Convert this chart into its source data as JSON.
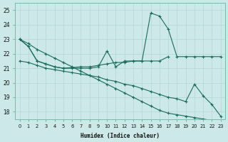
{
  "xlabel": "Humidex (Indice chaleur)",
  "xlim": [
    -0.5,
    23.5
  ],
  "ylim": [
    17.5,
    25.5
  ],
  "yticks": [
    18,
    19,
    20,
    21,
    22,
    23,
    24,
    25
  ],
  "xticks": [
    0,
    1,
    2,
    3,
    4,
    5,
    6,
    7,
    8,
    9,
    10,
    11,
    12,
    13,
    14,
    15,
    16,
    17,
    18,
    19,
    20,
    21,
    22,
    23
  ],
  "bg_color": "#cce8e8",
  "grid_color": "#aacccc",
  "line_color": "#1a6b5a",
  "line1_x": [
    0,
    1,
    2,
    3,
    4,
    5,
    6,
    7,
    8,
    9,
    10,
    11,
    12,
    13,
    14,
    15,
    16,
    17,
    18,
    19,
    20,
    21,
    22,
    23
  ],
  "line1_y": [
    23.0,
    22.5,
    21.5,
    21.3,
    21.1,
    21.0,
    21.0,
    21.0,
    21.0,
    21.1,
    22.2,
    21.1,
    21.5,
    21.5,
    21.5,
    24.8,
    24.6,
    23.7,
    21.8,
    21.8,
    21.8,
    21.8,
    21.8,
    21.8
  ],
  "line2_x": [
    0,
    1,
    2,
    3,
    4,
    5,
    6,
    7,
    8,
    9,
    10,
    11,
    12,
    13,
    14,
    15,
    16,
    17
  ],
  "line2_y": [
    23.0,
    22.5,
    21.5,
    21.3,
    21.1,
    21.0,
    21.05,
    21.1,
    21.1,
    21.2,
    21.3,
    21.4,
    21.4,
    21.5,
    21.5,
    21.5,
    21.5,
    21.8
  ],
  "line3_x": [
    0,
    1,
    2,
    3,
    4,
    5,
    6,
    7,
    8,
    9,
    10,
    11,
    12,
    13,
    14,
    15,
    16,
    17,
    18,
    19,
    20,
    21,
    22,
    23
  ],
  "line3_y": [
    23.0,
    22.7,
    22.3,
    22.0,
    21.7,
    21.4,
    21.1,
    20.8,
    20.5,
    20.2,
    19.9,
    19.6,
    19.3,
    19.0,
    18.7,
    18.4,
    18.1,
    17.9,
    17.8,
    17.7,
    17.6,
    17.5,
    17.4,
    17.3
  ],
  "line4_x": [
    0,
    1,
    2,
    3,
    4,
    5,
    6,
    7,
    8,
    9,
    10,
    11,
    12,
    13,
    14,
    15,
    16,
    17,
    18,
    19,
    20,
    21,
    22,
    23
  ],
  "line4_y": [
    21.5,
    21.4,
    21.2,
    21.0,
    20.9,
    20.8,
    20.7,
    20.6,
    20.5,
    20.4,
    20.2,
    20.1,
    19.9,
    19.8,
    19.6,
    19.4,
    19.2,
    19.0,
    18.9,
    18.7,
    19.9,
    19.1,
    18.5,
    17.7
  ]
}
